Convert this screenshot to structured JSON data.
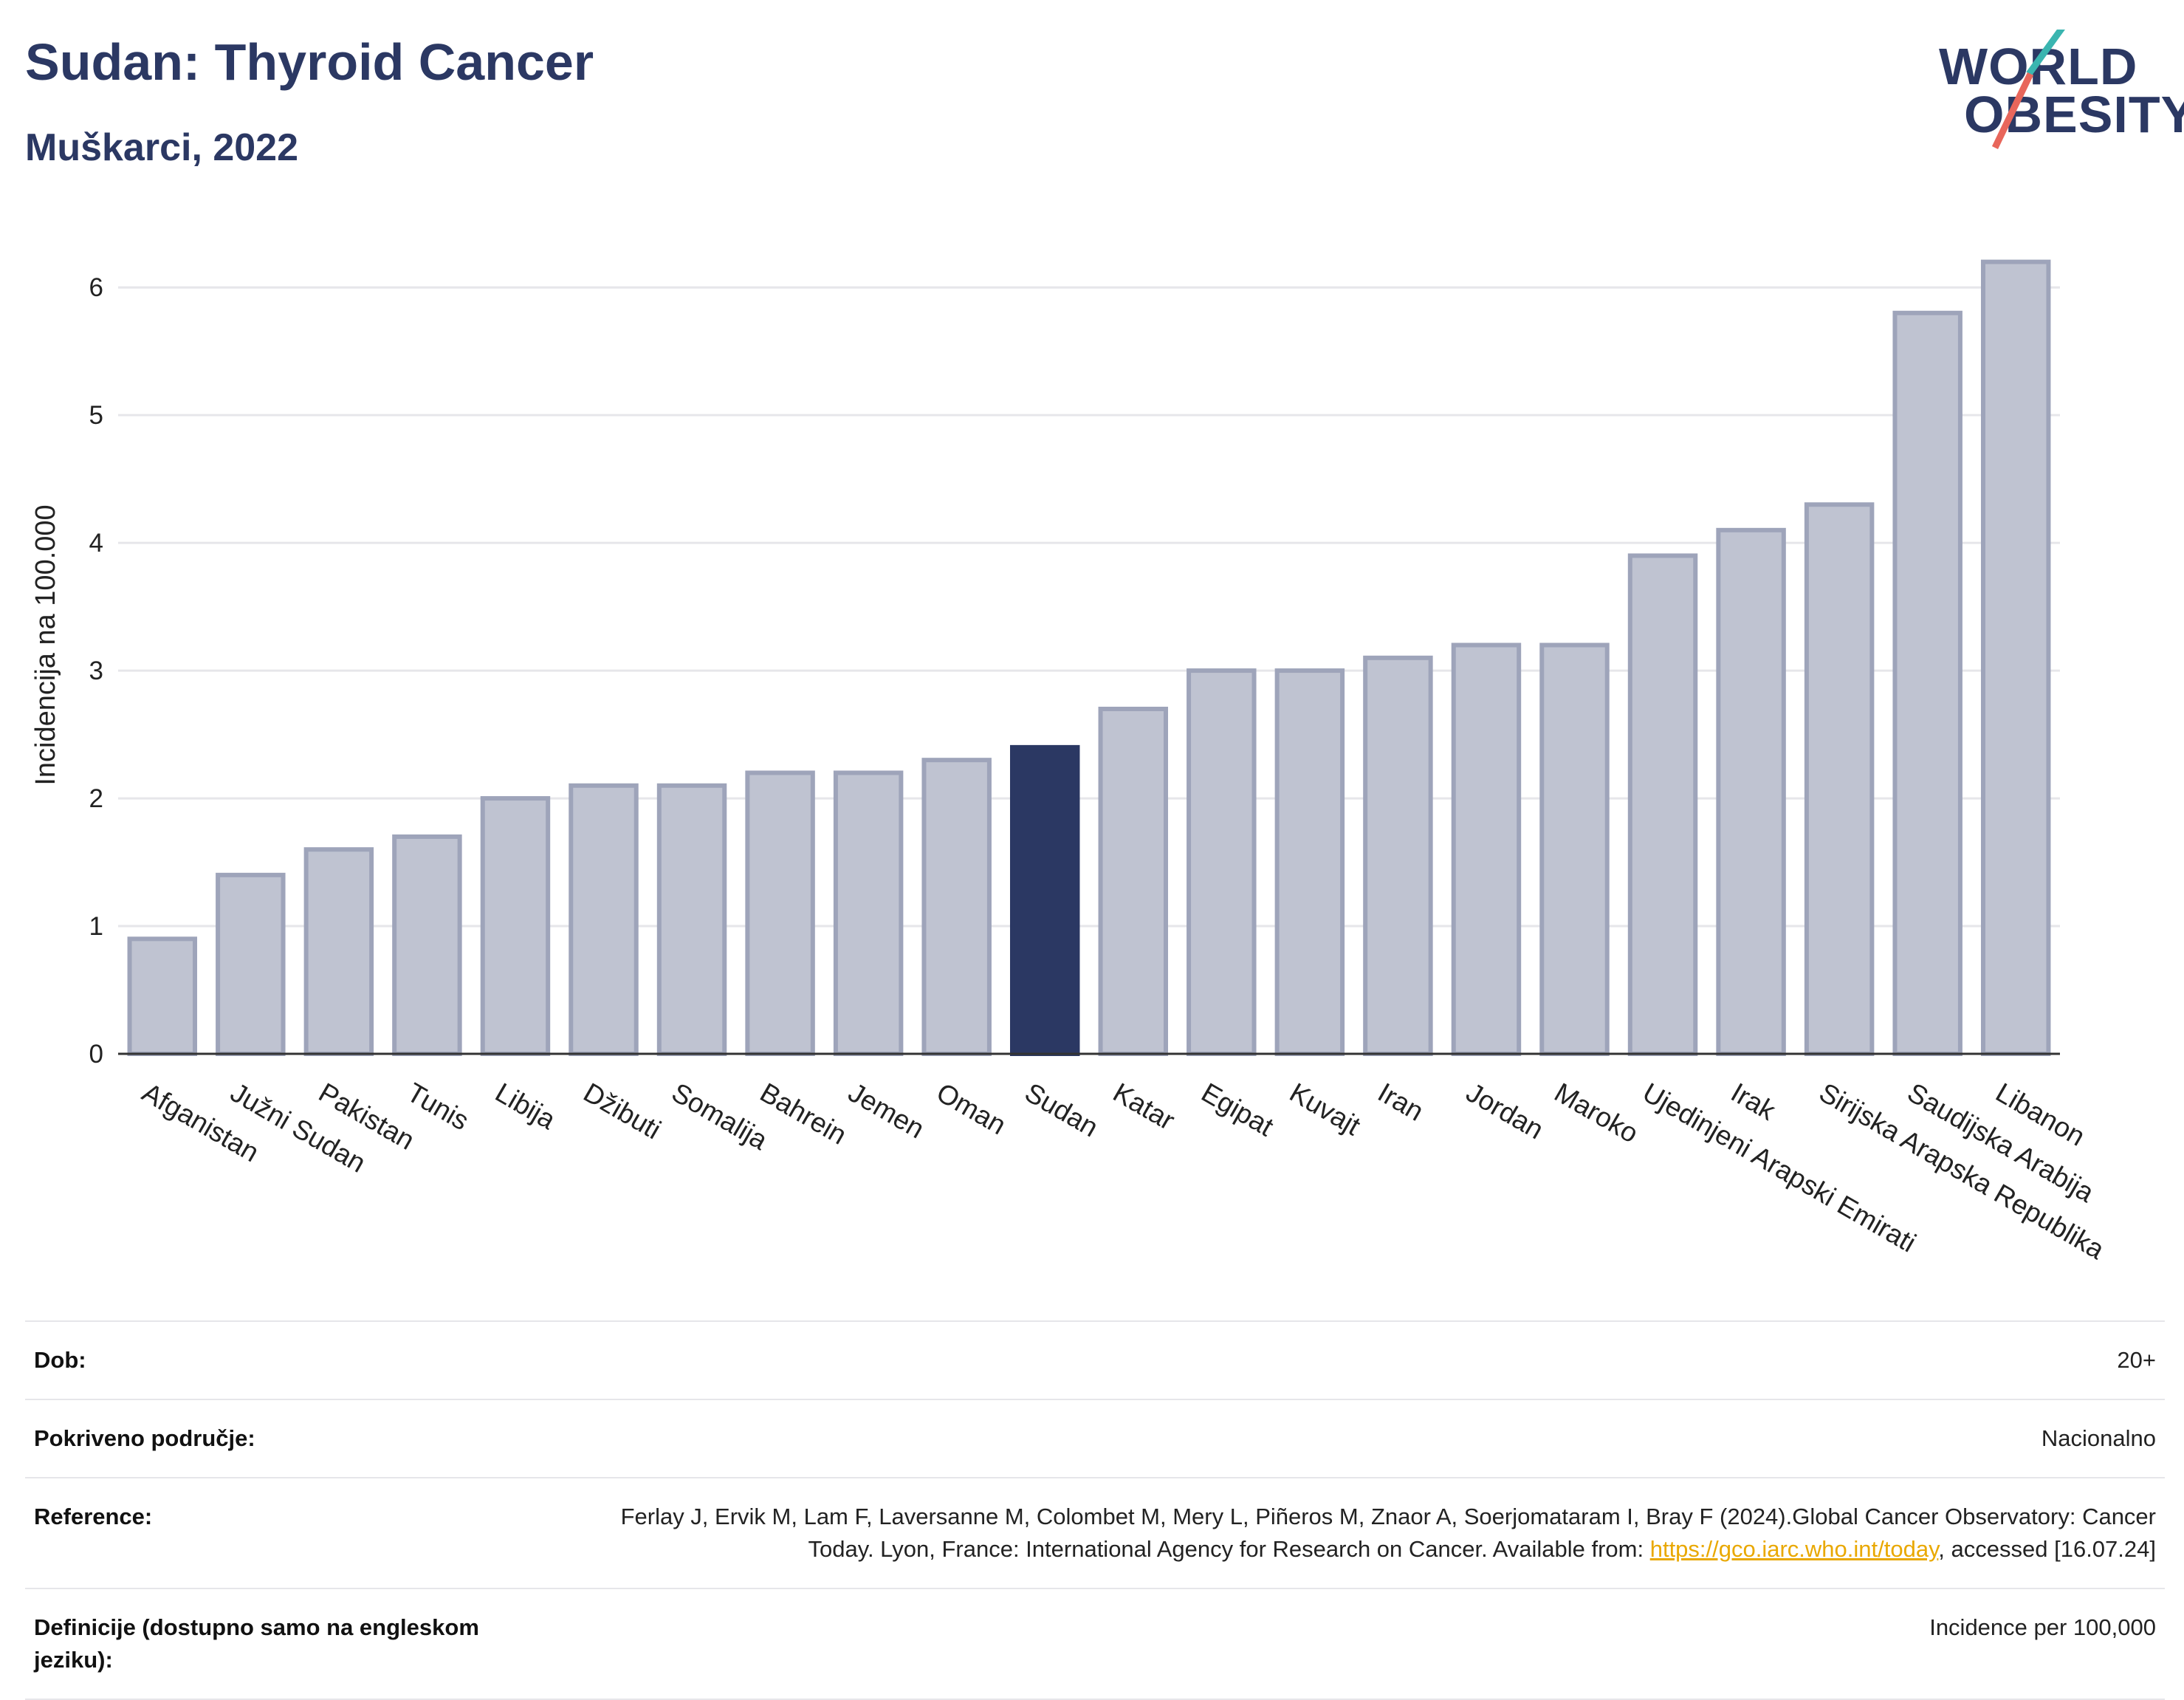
{
  "header": {
    "title": "Sudan: Thyroid Cancer",
    "subtitle": "Muškarci, 2022"
  },
  "logo": {
    "line1": "WORLD",
    "line2": "OBESITY"
  },
  "colors": {
    "bar": "#bfc3d1",
    "bar_edge": "#9ea4ba",
    "highlight": "#2b3863",
    "title": "#2b3863",
    "grid": "#e6e6ea",
    "logo_accent1": "#3ab5b0",
    "logo_accent2": "#e8665b"
  },
  "chart_data": {
    "type": "bar",
    "title": "Sudan: Thyroid Cancer",
    "subtitle": "Muškarci, 2022",
    "ylabel": "Incidencija na 100.000",
    "xlabel": "",
    "ylim": [
      0,
      6.4
    ],
    "yticks": [
      0,
      1,
      2,
      3,
      4,
      5,
      6
    ],
    "grid": true,
    "highlight": "Sudan",
    "categories": [
      "Afganistan",
      "Južni Sudan",
      "Pakistan",
      "Tunis",
      "Libija",
      "Džibuti",
      "Somalija",
      "Bahrein",
      "Jemen",
      "Oman",
      "Sudan",
      "Katar",
      "Egipat",
      "Kuvajt",
      "Iran",
      "Jordan",
      "Maroko",
      "Ujedinjeni Arapski Emirati",
      "Irak",
      "Sirijska Arapska Republika",
      "Saudijska Arabija",
      "Libanon"
    ],
    "values": [
      0.9,
      1.4,
      1.6,
      1.7,
      2.0,
      2.1,
      2.1,
      2.2,
      2.2,
      2.3,
      2.4,
      2.7,
      3.0,
      3.0,
      3.1,
      3.2,
      3.2,
      3.9,
      4.1,
      4.3,
      5.8,
      6.2
    ]
  },
  "info": {
    "age_label": "Dob:",
    "age_value": "20+",
    "area_label": "Pokriveno područje:",
    "area_value": "Nacionalno",
    "ref_label": "Reference:",
    "ref_text_1": "Ferlay J, Ervik M, Lam F, Laversanne M, Colombet M, Mery L, Piñeros M, Znaor A, Soerjomataram I, Bray F (2024).Global Cancer Observatory: Cancer Today. Lyon, France: International Agency for Research on Cancer. Available from: ",
    "ref_link": "https://gco.iarc.who.int/today",
    "ref_text_2": ", accessed [16.07.24]",
    "def_label": "Definicije (dostupno samo na engleskom jeziku):",
    "def_value": "Incidence per 100,000"
  }
}
